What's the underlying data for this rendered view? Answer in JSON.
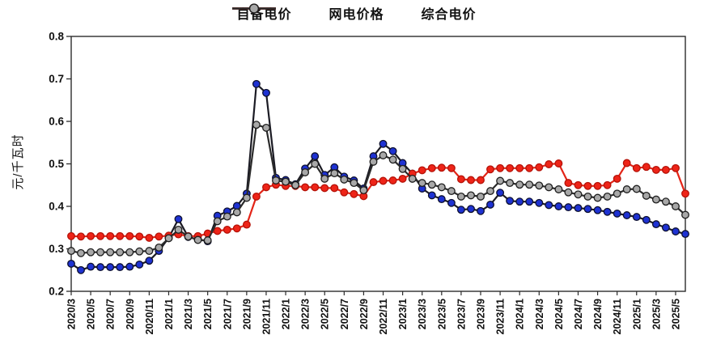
{
  "chart_data": {
    "type": "line",
    "title": "",
    "ylabel": "元/千瓦时",
    "xlabel": "",
    "ylim": [
      0.2,
      0.8
    ],
    "y_tick_step": 0.1,
    "y_ticks": [
      "0.2",
      "0.3",
      "0.4",
      "0.5",
      "0.6",
      "0.7",
      "0.8"
    ],
    "x_tick_every": 2,
    "grid": false,
    "legend_position": "top",
    "x": [
      "2020/3",
      "2020/4",
      "2020/5",
      "2020/6",
      "2020/7",
      "2020/8",
      "2020/9",
      "2020/10",
      "2020/11",
      "2020/12",
      "2021/1",
      "2021/2",
      "2021/3",
      "2021/4",
      "2021/5",
      "2021/6",
      "2021/7",
      "2021/8",
      "2021/9",
      "2021/10",
      "2021/11",
      "2021/12",
      "2022/1",
      "2022/2",
      "2022/3",
      "2022/4",
      "2022/5",
      "2022/6",
      "2022/7",
      "2022/8",
      "2022/9",
      "2022/10",
      "2022/11",
      "2022/12",
      "2023/1",
      "2023/2",
      "2023/3",
      "2023/4",
      "2023/5",
      "2023/6",
      "2023/7",
      "2023/8",
      "2023/9",
      "2023/10",
      "2023/11",
      "2023/12",
      "2024/1",
      "2024/2",
      "2024/3",
      "2024/4",
      "2024/5",
      "2024/6",
      "2024/7",
      "2024/8",
      "2024/9",
      "2024/10",
      "2024/11",
      "2024/12",
      "2025/1",
      "2025/2",
      "2025/3",
      "2025/4",
      "2025/5",
      "2025/6"
    ],
    "series": [
      {
        "id": "self-supplied-price",
        "name": "自备电价",
        "line_color": "#1b1b24",
        "marker_fill": "#1e32d2",
        "marker_edge": "#0d1030",
        "values": [
          0.265,
          0.25,
          0.258,
          0.257,
          0.257,
          0.257,
          0.258,
          0.263,
          0.272,
          0.295,
          0.326,
          0.37,
          0.328,
          0.322,
          0.318,
          0.378,
          0.388,
          0.401,
          0.43,
          0.688,
          0.667,
          0.467,
          0.462,
          0.452,
          0.489,
          0.518,
          0.474,
          0.492,
          0.47,
          0.461,
          0.442,
          0.518,
          0.547,
          0.53,
          0.502,
          0.477,
          0.442,
          0.426,
          0.417,
          0.408,
          0.392,
          0.394,
          0.389,
          0.404,
          0.432,
          0.413,
          0.411,
          0.411,
          0.408,
          0.403,
          0.4,
          0.398,
          0.396,
          0.394,
          0.391,
          0.387,
          0.383,
          0.379,
          0.375,
          0.368,
          0.358,
          0.35,
          0.341,
          0.335
        ]
      },
      {
        "id": "grid-price",
        "name": "网电价格",
        "line_color": "#e32417",
        "marker_fill": "#ee2418",
        "marker_edge": "#b51208",
        "values": [
          0.33,
          0.329,
          0.33,
          0.33,
          0.33,
          0.33,
          0.33,
          0.329,
          0.326,
          0.329,
          0.331,
          0.334,
          0.33,
          0.33,
          0.336,
          0.342,
          0.345,
          0.348,
          0.357,
          0.423,
          0.445,
          0.451,
          0.448,
          0.448,
          0.445,
          0.445,
          0.443,
          0.443,
          0.433,
          0.429,
          0.424,
          0.457,
          0.46,
          0.461,
          0.465,
          0.477,
          0.485,
          0.49,
          0.491,
          0.49,
          0.464,
          0.462,
          0.462,
          0.487,
          0.49,
          0.49,
          0.49,
          0.49,
          0.492,
          0.499,
          0.501,
          0.455,
          0.45,
          0.448,
          0.448,
          0.45,
          0.465,
          0.502,
          0.49,
          0.493,
          0.486,
          0.486,
          0.49,
          0.43
        ]
      },
      {
        "id": "composite-price",
        "name": "综合电价",
        "line_color": "#2b2b2b",
        "marker_fill": "#a8a8a8",
        "marker_edge": "#1e1e1e",
        "values": [
          0.295,
          0.29,
          0.292,
          0.292,
          0.292,
          0.292,
          0.292,
          0.294,
          0.295,
          0.303,
          0.325,
          0.345,
          0.329,
          0.321,
          0.32,
          0.365,
          0.376,
          0.386,
          0.42,
          0.592,
          0.585,
          0.461,
          0.458,
          0.45,
          0.48,
          0.5,
          0.465,
          0.478,
          0.463,
          0.455,
          0.438,
          0.505,
          0.52,
          0.51,
          0.488,
          0.465,
          0.455,
          0.451,
          0.445,
          0.436,
          0.423,
          0.426,
          0.423,
          0.436,
          0.46,
          0.455,
          0.451,
          0.451,
          0.449,
          0.445,
          0.44,
          0.433,
          0.428,
          0.423,
          0.42,
          0.423,
          0.43,
          0.44,
          0.441,
          0.425,
          0.416,
          0.411,
          0.4,
          0.38
        ]
      }
    ]
  }
}
